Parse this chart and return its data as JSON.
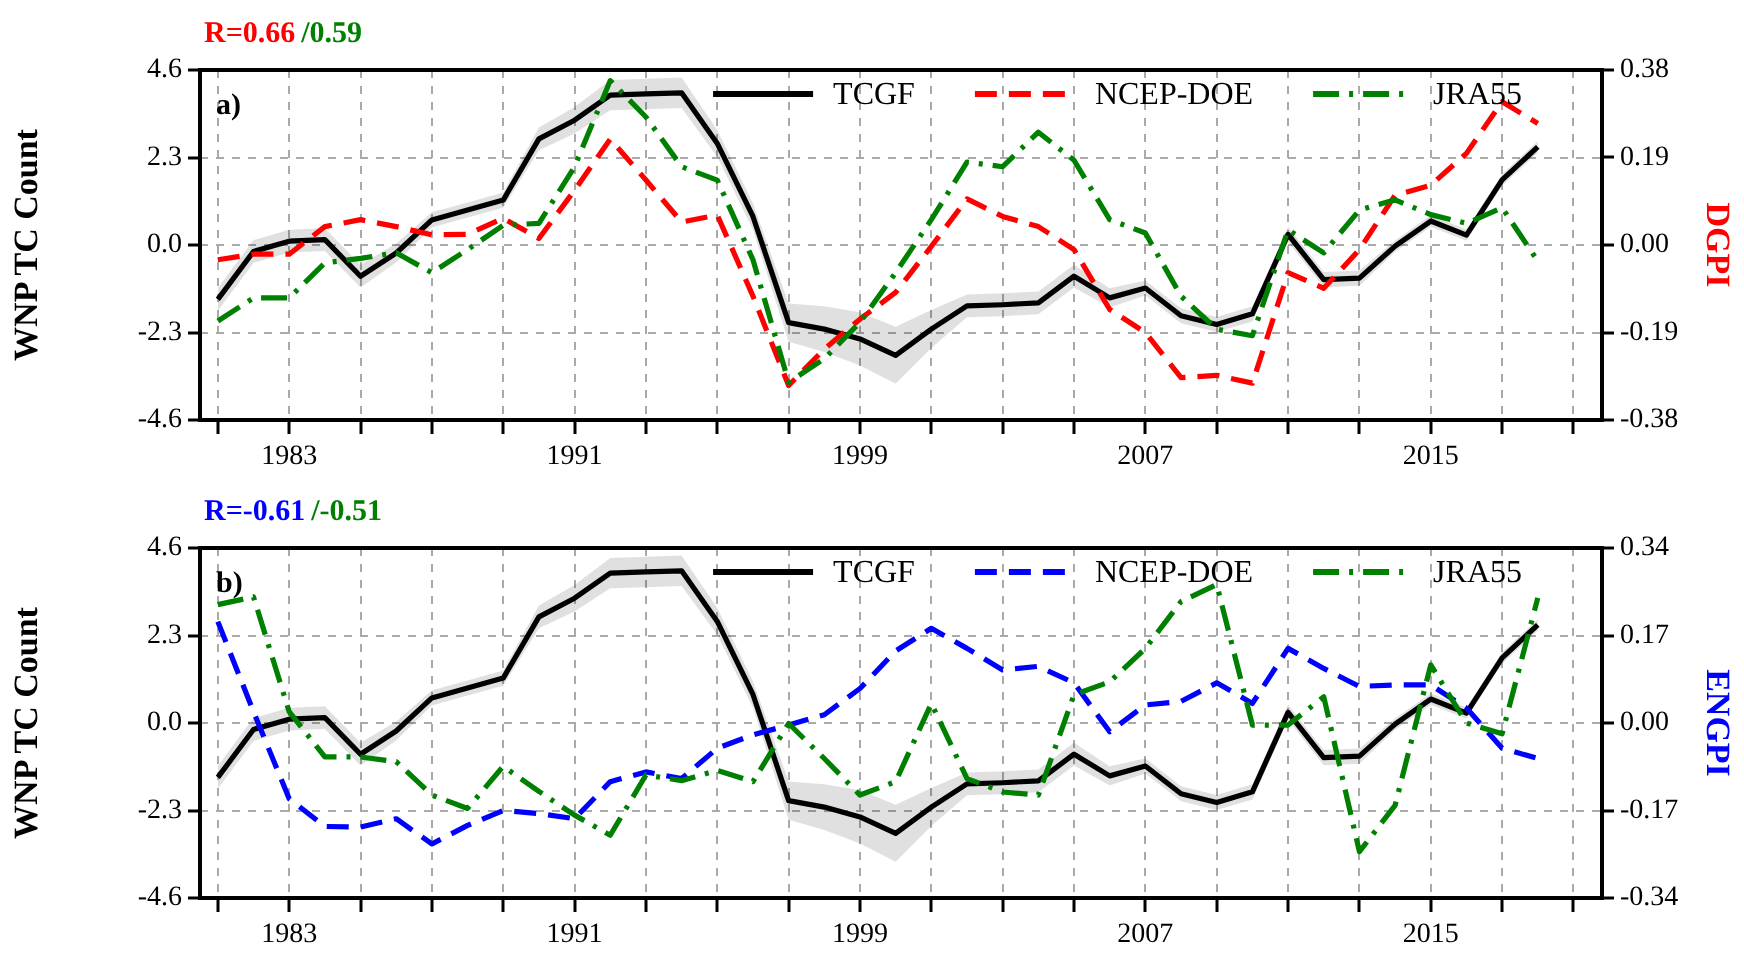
{
  "chart_data": [
    {
      "type": "line",
      "ylabel": "WNP TC Count",
      "y2label": "DGPI",
      "annotations": [
        "a)",
        "R=0.66",
        "/0.59"
      ],
      "legend": "top right",
      "grid": true,
      "x": [
        1981,
        1982,
        1983,
        1984,
        1985,
        1986,
        1987,
        1988,
        1989,
        1990,
        1991,
        1992,
        1993,
        1994,
        1995,
        1996,
        1997,
        1998,
        1999,
        2000,
        2001,
        2002,
        2003,
        2004,
        2005,
        2006,
        2007,
        2008,
        2009,
        2010,
        2011,
        2012,
        2013,
        2014,
        2015,
        2016,
        2017,
        2018
      ],
      "xlim": [
        1980.5,
        2019.8
      ],
      "xticks": [
        {
          "value": 1981,
          "label": null
        },
        1983,
        {
          "value": 1985,
          "label": null
        },
        {
          "value": 1987,
          "label": null
        },
        {
          "value": 1989,
          "label": null
        },
        1991,
        {
          "value": 1993,
          "label": null
        },
        {
          "value": 1995,
          "label": null
        },
        {
          "value": 1997,
          "label": null
        },
        1999,
        {
          "value": 2001,
          "label": null
        },
        {
          "value": 2003,
          "label": null
        },
        {
          "value": 2005,
          "label": null
        },
        2007,
        {
          "value": 2009,
          "label": null
        },
        {
          "value": 2011,
          "label": null
        },
        {
          "value": 2013,
          "label": null
        },
        2015,
        {
          "value": 2017,
          "label": null
        },
        {
          "value": 2019,
          "label": null
        }
      ],
      "ylim": [
        -4.6,
        4.6
      ],
      "yticks": [
        -4.6,
        -2.3,
        {
          "value": 0,
          "label": "0.0"
        },
        2.3,
        4.6
      ],
      "y2lim": [
        -0.38,
        0.38
      ],
      "y2ticks": [
        -0.38,
        -0.19,
        {
          "value": 0,
          "label": "0.00"
        },
        0.19,
        0.38
      ],
      "series": [
        {
          "name": "TCGF",
          "color": "#000000",
          "line_style": "solid",
          "values": [
            -1.43,
            -0.17,
            0.1,
            0.14,
            -0.82,
            -0.21,
            0.66,
            0.92,
            1.18,
            2.79,
            3.28,
            3.94,
            3.97,
            4.0,
            2.67,
            0.75,
            -2.04,
            -2.21,
            -2.47,
            -2.9,
            -2.21,
            -1.6,
            -1.57,
            -1.52,
            -0.82,
            -1.39,
            -1.13,
            -1.86,
            -2.09,
            -1.81,
            0.28,
            -0.91,
            -0.87,
            -0.03,
            0.63,
            0.26,
            1.71,
            2.58
          ],
          "lower": [
            -1.73,
            -0.47,
            -0.2,
            -0.16,
            -1.12,
            -0.46,
            0.46,
            0.72,
            0.98,
            2.49,
            2.93,
            3.54,
            3.57,
            3.6,
            2.32,
            0.4,
            -2.54,
            -2.81,
            -3.17,
            -3.65,
            -2.71,
            -1.9,
            -1.87,
            -1.82,
            -1.12,
            -1.64,
            -1.33,
            -2.06,
            -2.29,
            -2.01,
            0.08,
            -1.11,
            -1.07,
            -0.18,
            0.48,
            0.11,
            1.56,
            2.43
          ],
          "upper": [
            -1.13,
            0.13,
            0.4,
            0.44,
            -0.52,
            0.04,
            0.86,
            1.12,
            1.38,
            3.09,
            3.63,
            4.34,
            4.37,
            4.4,
            3.02,
            1.1,
            -1.54,
            -1.61,
            -1.77,
            -2.15,
            -1.71,
            -1.3,
            -1.27,
            -1.22,
            -0.52,
            -1.14,
            -0.93,
            -1.66,
            -1.89,
            -1.61,
            0.48,
            -0.71,
            -0.67,
            0.12,
            0.78,
            0.41,
            1.86,
            2.73
          ]
        },
        {
          "name": "NCEP-DOE",
          "color": "#ff0000",
          "line_style": "dashed",
          "axis": "y2",
          "values": [
            -0.032,
            -0.02,
            -0.02,
            0.04,
            0.055,
            0.04,
            0.022,
            0.023,
            0.058,
            0.014,
            0.119,
            0.23,
            0.141,
            0.05,
            0.065,
            -0.111,
            -0.305,
            -0.226,
            -0.161,
            -0.103,
            -0.003,
            0.1,
            0.062,
            0.04,
            -0.01,
            -0.14,
            -0.19,
            -0.288,
            -0.283,
            -0.3,
            -0.06,
            -0.094,
            -0.01,
            0.108,
            0.13,
            0.199,
            0.311,
            0.264
          ]
        },
        {
          "name": "JRA55",
          "color": "#008000",
          "line_style": "dashdot",
          "axis": "y2",
          "values": [
            -0.165,
            -0.115,
            -0.115,
            -0.039,
            -0.029,
            -0.017,
            -0.06,
            -0.01,
            0.043,
            0.047,
            0.17,
            0.357,
            0.278,
            0.17,
            0.141,
            -0.032,
            -0.298,
            -0.247,
            -0.168,
            -0.06,
            0.055,
            0.18,
            0.17,
            0.245,
            0.184,
            0.055,
            0.026,
            -0.111,
            -0.183,
            -0.197,
            0.033,
            -0.017,
            0.076,
            0.098,
            0.066,
            0.047,
            0.081,
            -0.035
          ]
        }
      ]
    },
    {
      "type": "line",
      "ylabel": "WNP TC Count",
      "y2label": "ENGPI",
      "annotations": [
        "b)",
        "R=-0.61",
        "/-0.51"
      ],
      "legend": "top right",
      "grid": true,
      "x": [
        1981,
        1982,
        1983,
        1984,
        1985,
        1986,
        1987,
        1988,
        1989,
        1990,
        1991,
        1992,
        1993,
        1994,
        1995,
        1996,
        1997,
        1998,
        1999,
        2000,
        2001,
        2002,
        2003,
        2004,
        2005,
        2006,
        2007,
        2008,
        2009,
        2010,
        2011,
        2012,
        2013,
        2014,
        2015,
        2016,
        2017,
        2018
      ],
      "xlim": [
        1980.5,
        2019.8
      ],
      "xticks": [
        {
          "value": 1981,
          "label": null
        },
        1983,
        {
          "value": 1985,
          "label": null
        },
        {
          "value": 1987,
          "label": null
        },
        {
          "value": 1989,
          "label": null
        },
        1991,
        {
          "value": 1993,
          "label": null
        },
        {
          "value": 1995,
          "label": null
        },
        {
          "value": 1997,
          "label": null
        },
        1999,
        {
          "value": 2001,
          "label": null
        },
        {
          "value": 2003,
          "label": null
        },
        {
          "value": 2005,
          "label": null
        },
        2007,
        {
          "value": 2009,
          "label": null
        },
        {
          "value": 2011,
          "label": null
        },
        {
          "value": 2013,
          "label": null
        },
        2015,
        {
          "value": 2017,
          "label": null
        },
        {
          "value": 2019,
          "label": null
        }
      ],
      "ylim": [
        -4.6,
        4.6
      ],
      "yticks": [
        -4.6,
        -2.3,
        {
          "value": 0,
          "label": "0.0"
        },
        2.3,
        4.6
      ],
      "y2lim": [
        -0.34,
        0.34
      ],
      "y2ticks": [
        -0.34,
        -0.17,
        {
          "value": 0,
          "label": "0.00"
        },
        0.17,
        0.34
      ],
      "series": [
        {
          "name": "TCGF",
          "color": "#000000",
          "line_style": "solid",
          "values": [
            -1.43,
            -0.17,
            0.1,
            0.14,
            -0.82,
            -0.21,
            0.66,
            0.92,
            1.18,
            2.79,
            3.28,
            3.94,
            3.97,
            4.0,
            2.67,
            0.75,
            -2.04,
            -2.21,
            -2.47,
            -2.9,
            -2.21,
            -1.6,
            -1.57,
            -1.52,
            -0.82,
            -1.39,
            -1.13,
            -1.86,
            -2.09,
            -1.81,
            0.28,
            -0.91,
            -0.87,
            -0.03,
            0.63,
            0.26,
            1.71,
            2.58
          ],
          "lower": [
            -1.73,
            -0.47,
            -0.2,
            -0.16,
            -1.12,
            -0.46,
            0.46,
            0.72,
            0.98,
            2.49,
            2.93,
            3.54,
            3.57,
            3.6,
            2.32,
            0.4,
            -2.54,
            -2.81,
            -3.17,
            -3.65,
            -2.71,
            -1.9,
            -1.87,
            -1.82,
            -1.12,
            -1.64,
            -1.33,
            -2.06,
            -2.29,
            -2.01,
            0.08,
            -1.11,
            -1.07,
            -0.18,
            0.48,
            0.11,
            1.56,
            2.43
          ],
          "upper": [
            -1.13,
            0.13,
            0.4,
            0.44,
            -0.52,
            0.04,
            0.86,
            1.12,
            1.38,
            3.09,
            3.63,
            4.34,
            4.37,
            4.4,
            3.02,
            1.1,
            -1.54,
            -1.61,
            -1.77,
            -2.15,
            -1.71,
            -1.3,
            -1.27,
            -1.22,
            -0.52,
            -1.14,
            -0.93,
            -1.66,
            -1.89,
            -1.61,
            0.48,
            -0.71,
            -0.67,
            0.12,
            0.78,
            0.41,
            1.86,
            2.73
          ]
        },
        {
          "name": "NCEP-DOE",
          "color": "#0000ff",
          "line_style": "dashed",
          "axis": "y2",
          "values": [
            0.197,
            0.022,
            -0.147,
            -0.201,
            -0.202,
            -0.186,
            -0.235,
            -0.199,
            -0.17,
            -0.176,
            -0.186,
            -0.114,
            -0.095,
            -0.108,
            -0.049,
            -0.023,
            -0.004,
            0.016,
            0.067,
            0.14,
            0.184,
            0.145,
            0.103,
            0.11,
            0.078,
            -0.017,
            0.035,
            0.042,
            0.078,
            0.038,
            0.145,
            0.106,
            0.071,
            0.074,
            0.074,
            0.029,
            -0.049,
            -0.069
          ]
        },
        {
          "name": "JRA55",
          "color": "#008000",
          "line_style": "dashdot",
          "axis": "y2",
          "values": [
            0.23,
            0.245,
            0.022,
            -0.066,
            -0.066,
            -0.075,
            -0.14,
            -0.166,
            -0.084,
            -0.133,
            -0.179,
            -0.218,
            -0.101,
            -0.112,
            -0.092,
            -0.114,
            -0.001,
            -0.069,
            -0.14,
            -0.114,
            0.038,
            -0.108,
            -0.134,
            -0.14,
            0.055,
            0.08,
            0.145,
            0.236,
            0.269,
            -0.004,
            -0.004,
            0.051,
            -0.25,
            -0.16,
            0.113,
            0,
            -0.021,
            0.243
          ]
        }
      ]
    }
  ]
}
